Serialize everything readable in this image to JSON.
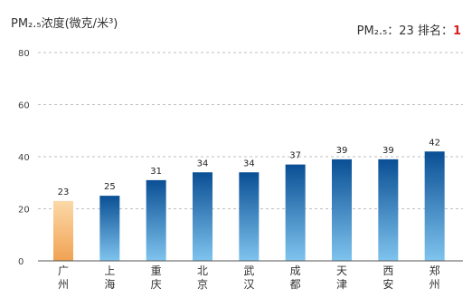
{
  "header": {
    "unit_title": "PM₂.₅浓度(微克/米³)",
    "rank_prefix": "PM₂.₅：23  排名：",
    "rank_value": "1"
  },
  "colors": {
    "highlight_top": "#fbd9a8",
    "highlight_bottom": "#f1a253",
    "bar_top": "#0a4f94",
    "bar_bottom": "#7fc4ee",
    "rank_value": "#d62020"
  },
  "chart_data": {
    "type": "bar",
    "title": "PM₂.₅浓度(微克/米³)",
    "xlabel": "",
    "ylabel": "",
    "ylim": [
      0,
      80
    ],
    "yticks": [
      0,
      20,
      40,
      60,
      80
    ],
    "grid": true,
    "highlight_index": 0,
    "categories": [
      "广州",
      "上海",
      "重庆",
      "北京",
      "武汉",
      "成都",
      "天津",
      "西安",
      "郑州"
    ],
    "values": [
      23,
      25,
      31,
      34,
      34,
      37,
      39,
      39,
      42
    ],
    "value_labels": [
      "23",
      "25",
      "31",
      "34",
      "34",
      "37",
      "39",
      "39",
      "42"
    ]
  }
}
